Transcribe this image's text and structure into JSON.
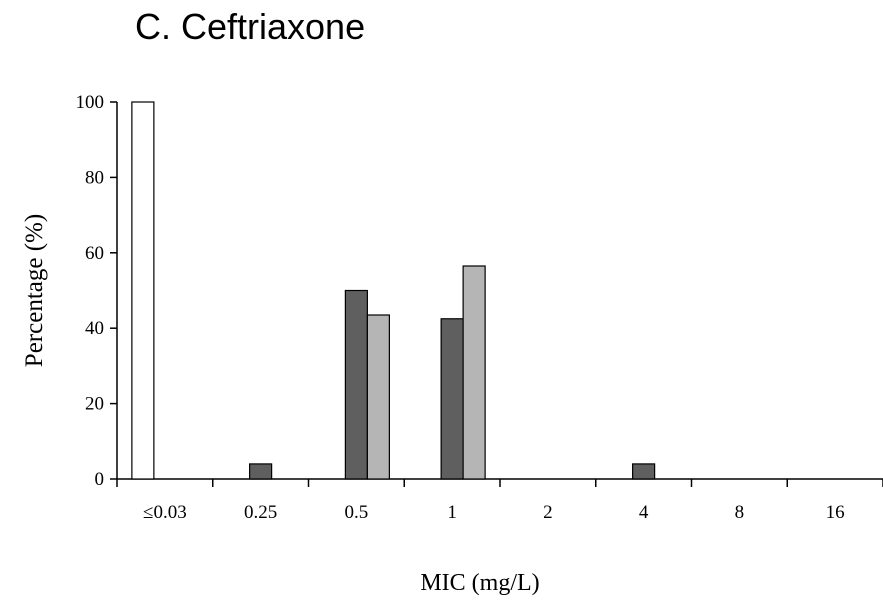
{
  "chart_data": {
    "type": "bar",
    "title": "C. Ceftriaxone",
    "xlabel": "MIC (mg/L)",
    "ylabel": "Percentage (%)",
    "categories": [
      "≤0.03",
      "0.25",
      "0.5",
      "1",
      "2",
      "4",
      "8",
      "16"
    ],
    "yticks": [
      "0",
      "20",
      "40",
      "60",
      "80",
      "100"
    ],
    "ylim": [
      0,
      100
    ],
    "grid": false,
    "legend": "none",
    "series": [
      {
        "color": "#ffffff",
        "values": [
          100,
          0,
          0,
          0,
          0,
          0,
          0,
          0
        ]
      },
      {
        "color": "#5f5f5f",
        "values": [
          0,
          4,
          50,
          42.5,
          0,
          4,
          0,
          0
        ]
      },
      {
        "color": "#b5b5b5",
        "values": [
          0,
          0,
          43.5,
          56.5,
          0,
          0,
          0,
          0
        ]
      }
    ]
  }
}
